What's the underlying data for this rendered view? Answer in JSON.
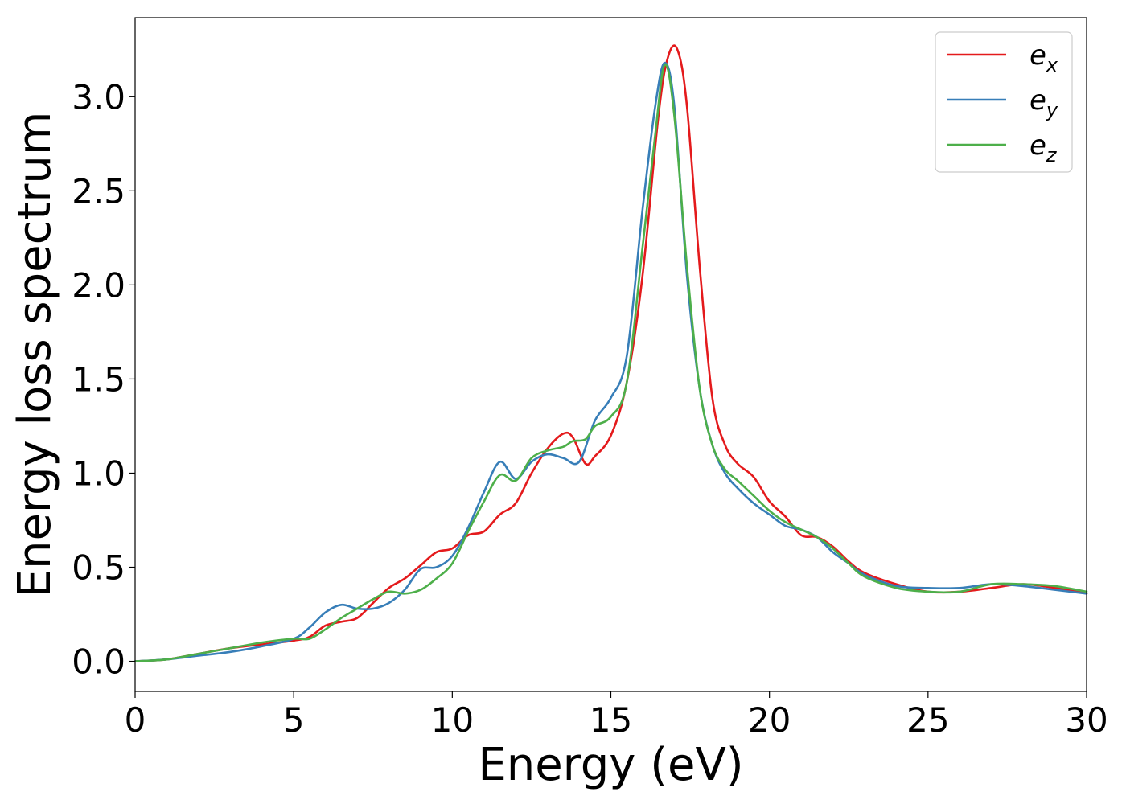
{
  "chart_data": {
    "type": "line",
    "title": "",
    "xlabel": "Energy (eV)",
    "ylabel": "Energy loss spectrum",
    "xlim": [
      0,
      30
    ],
    "ylim": [
      -0.16,
      3.42
    ],
    "xticks": [
      0,
      5,
      10,
      15,
      20,
      25,
      30
    ],
    "xtick_labels": [
      "0",
      "5",
      "10",
      "15",
      "20",
      "25",
      "30"
    ],
    "yticks": [
      0.0,
      0.5,
      1.0,
      1.5,
      2.0,
      2.5,
      3.0
    ],
    "ytick_labels": [
      "0.0",
      "0.5",
      "1.0",
      "1.5",
      "2.0",
      "2.5",
      "3.0"
    ],
    "grid": false,
    "legend_position": "top-right",
    "series": [
      {
        "name": "e",
        "subscript": "x",
        "color": "#e41a1c",
        "x": [
          0,
          1,
          2,
          3,
          4,
          5,
          5.5,
          6,
          6.5,
          7,
          7.5,
          8,
          8.5,
          9,
          9.5,
          10,
          10.5,
          11,
          11.5,
          12,
          12.5,
          13,
          13.5,
          13.8,
          14.2,
          14.5,
          15,
          15.5,
          16,
          16.5,
          16.8,
          17.1,
          17.4,
          17.8,
          18.2,
          18.6,
          19,
          19.5,
          20,
          20.5,
          21,
          21.5,
          22,
          22.5,
          23,
          24,
          25,
          26,
          27,
          28,
          29,
          30
        ],
        "y": [
          0.0,
          0.01,
          0.04,
          0.07,
          0.09,
          0.11,
          0.13,
          0.19,
          0.21,
          0.23,
          0.31,
          0.39,
          0.44,
          0.51,
          0.58,
          0.6,
          0.67,
          0.69,
          0.78,
          0.84,
          1.0,
          1.13,
          1.21,
          1.19,
          1.05,
          1.09,
          1.2,
          1.48,
          2.05,
          2.9,
          3.21,
          3.25,
          2.95,
          2.1,
          1.4,
          1.15,
          1.05,
          0.98,
          0.85,
          0.77,
          0.67,
          0.66,
          0.61,
          0.53,
          0.47,
          0.41,
          0.37,
          0.37,
          0.39,
          0.41,
          0.39,
          0.36
        ]
      },
      {
        "name": "e",
        "subscript": "y",
        "color": "#377eb8",
        "x": [
          0,
          1,
          2,
          3,
          4,
          5,
          5.5,
          6,
          6.5,
          7,
          7.5,
          8,
          8.5,
          9,
          9.5,
          10,
          10.5,
          11,
          11.5,
          12,
          12.5,
          13,
          13.5,
          14,
          14.5,
          15,
          15.5,
          16,
          16.4,
          16.7,
          17,
          17.4,
          17.8,
          18.2,
          18.6,
          19,
          19.5,
          20,
          20.5,
          21,
          21.5,
          22,
          22.5,
          23,
          24,
          25,
          26,
          27,
          28,
          29,
          30
        ],
        "y": [
          0.0,
          0.01,
          0.03,
          0.05,
          0.08,
          0.12,
          0.18,
          0.26,
          0.3,
          0.28,
          0.28,
          0.31,
          0.38,
          0.49,
          0.5,
          0.56,
          0.71,
          0.9,
          1.06,
          0.97,
          1.06,
          1.1,
          1.08,
          1.06,
          1.28,
          1.4,
          1.62,
          2.4,
          2.95,
          3.18,
          2.95,
          2.05,
          1.45,
          1.15,
          1.0,
          0.92,
          0.84,
          0.78,
          0.72,
          0.7,
          0.66,
          0.58,
          0.52,
          0.46,
          0.4,
          0.39,
          0.39,
          0.41,
          0.4,
          0.38,
          0.36
        ]
      },
      {
        "name": "e",
        "subscript": "z",
        "color": "#4daf4a",
        "x": [
          0,
          1,
          2,
          3,
          4,
          5,
          5.5,
          6,
          6.5,
          7,
          7.5,
          8,
          8.5,
          9,
          9.5,
          10,
          10.5,
          11,
          11.5,
          12,
          12.5,
          13,
          13.5,
          13.8,
          14.2,
          14.5,
          15,
          15.5,
          16,
          16.4,
          16.7,
          17,
          17.4,
          17.8,
          18.2,
          18.6,
          19,
          19.5,
          20,
          20.5,
          21,
          21.5,
          22,
          22.5,
          23,
          24,
          25,
          26,
          27,
          28,
          29,
          30
        ],
        "y": [
          0.0,
          0.01,
          0.04,
          0.07,
          0.1,
          0.12,
          0.12,
          0.17,
          0.23,
          0.28,
          0.33,
          0.37,
          0.36,
          0.38,
          0.44,
          0.52,
          0.69,
          0.85,
          0.99,
          0.96,
          1.08,
          1.12,
          1.14,
          1.17,
          1.18,
          1.25,
          1.3,
          1.48,
          2.2,
          2.8,
          3.17,
          2.9,
          2.1,
          1.45,
          1.15,
          1.02,
          0.96,
          0.88,
          0.8,
          0.74,
          0.7,
          0.66,
          0.6,
          0.52,
          0.45,
          0.39,
          0.37,
          0.37,
          0.41,
          0.41,
          0.4,
          0.37
        ]
      }
    ]
  }
}
